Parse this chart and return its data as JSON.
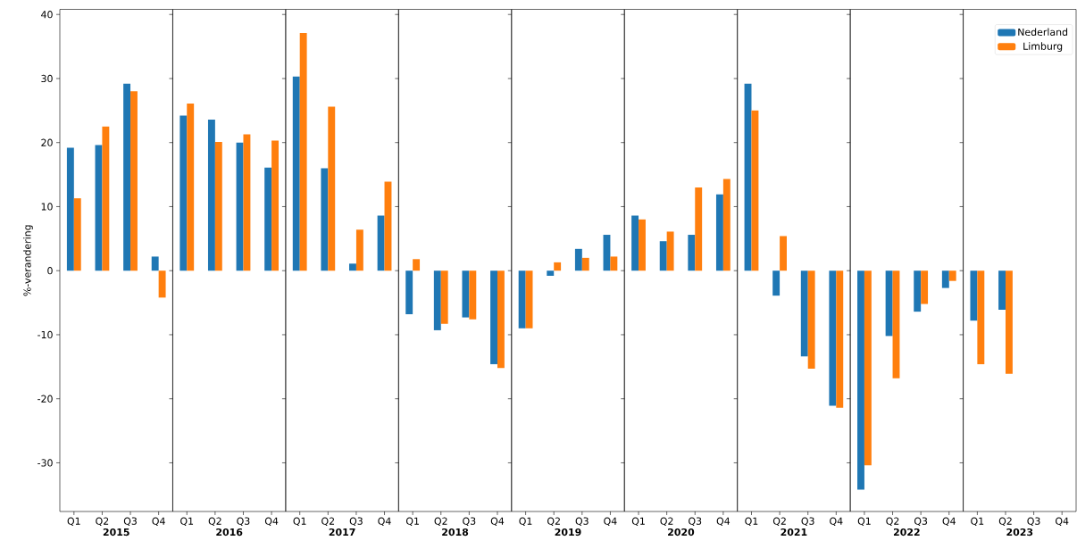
{
  "chart_data": [
    {
      "type": "bar",
      "xlabel": "2015",
      "ylabel": "%-verandering",
      "categories": [
        "Q1",
        "Q2",
        "Q3",
        "Q4"
      ],
      "ylim": [
        -37.6,
        40.8
      ],
      "yticks": [
        -30,
        -20,
        -10,
        0,
        10,
        20,
        30,
        40
      ],
      "legend": false,
      "series": [
        {
          "color": "#1f77b4",
          "values": [
            19.2,
            19.6,
            29.2,
            2.2
          ]
        },
        {
          "color": "#ff7f0e",
          "values": [
            11.3,
            22.5,
            28.0,
            -4.2
          ]
        }
      ]
    },
    {
      "type": "bar",
      "xlabel": "2016",
      "categories": [
        "Q1",
        "Q2",
        "Q3",
        "Q4"
      ],
      "ylim": [
        -37.6,
        40.8
      ],
      "yticks": [
        -30,
        -20,
        -10,
        0,
        10,
        20,
        30,
        40
      ],
      "tick_labels": "x",
      "legend": false,
      "series": [
        {
          "color": "#1f77b4",
          "values": [
            24.2,
            23.6,
            20.0,
            16.1
          ]
        },
        {
          "color": "#ff7f0e",
          "values": [
            26.1,
            20.1,
            21.3,
            20.3
          ]
        }
      ]
    },
    {
      "type": "bar",
      "xlabel": "2017",
      "categories": [
        "Q1",
        "Q2",
        "Q3",
        "Q4"
      ],
      "ylim": [
        -37.6,
        40.8
      ],
      "yticks": [
        -30,
        -20,
        -10,
        0,
        10,
        20,
        30,
        40
      ],
      "tick_labels": "x",
      "legend": false,
      "series": [
        {
          "color": "#1f77b4",
          "values": [
            30.3,
            16.0,
            1.1,
            8.6
          ]
        },
        {
          "color": "#ff7f0e",
          "values": [
            37.1,
            25.6,
            6.4,
            13.9
          ]
        }
      ]
    },
    {
      "type": "bar",
      "xlabel": "2018",
      "categories": [
        "Q1",
        "Q2",
        "Q3",
        "Q4"
      ],
      "ylim": [
        -37.6,
        40.8
      ],
      "yticks": [
        -30,
        -20,
        -10,
        0,
        10,
        20,
        30,
        40
      ],
      "tick_labels": "x",
      "legend": false,
      "series": [
        {
          "color": "#1f77b4",
          "values": [
            -6.8,
            -9.3,
            -7.3,
            -14.6
          ]
        },
        {
          "color": "#ff7f0e",
          "values": [
            1.8,
            -8.3,
            -7.6,
            -15.2
          ]
        }
      ]
    },
    {
      "type": "bar",
      "xlabel": "2019",
      "categories": [
        "Q1",
        "Q2",
        "Q3",
        "Q4"
      ],
      "ylim": [
        -37.6,
        40.8
      ],
      "yticks": [
        -30,
        -20,
        -10,
        0,
        10,
        20,
        30,
        40
      ],
      "tick_labels": "x",
      "legend": false,
      "series": [
        {
          "color": "#1f77b4",
          "values": [
            -9.0,
            -0.8,
            3.4,
            5.6
          ]
        },
        {
          "color": "#ff7f0e",
          "values": [
            -9.0,
            1.3,
            2.0,
            2.2
          ]
        }
      ]
    },
    {
      "type": "bar",
      "xlabel": "2020",
      "categories": [
        "Q1",
        "Q2",
        "Q3",
        "Q4"
      ],
      "ylim": [
        -37.6,
        40.8
      ],
      "yticks": [
        -30,
        -20,
        -10,
        0,
        10,
        20,
        30,
        40
      ],
      "tick_labels": "x",
      "legend": false,
      "series": [
        {
          "color": "#1f77b4",
          "values": [
            8.6,
            4.6,
            5.6,
            11.9
          ]
        },
        {
          "color": "#ff7f0e",
          "values": [
            8.0,
            6.1,
            13.0,
            14.3
          ]
        }
      ]
    },
    {
      "type": "bar",
      "xlabel": "2021",
      "categories": [
        "Q1",
        "Q2",
        "Q3",
        "Q4"
      ],
      "ylim": [
        -37.6,
        40.8
      ],
      "yticks": [
        -30,
        -20,
        -10,
        0,
        10,
        20,
        30,
        40
      ],
      "tick_labels": "x",
      "legend": false,
      "series": [
        {
          "color": "#1f77b4",
          "values": [
            29.2,
            -3.9,
            -13.4,
            -21.1
          ]
        },
        {
          "color": "#ff7f0e",
          "values": [
            25.0,
            5.4,
            -15.3,
            -21.4
          ]
        }
      ]
    },
    {
      "type": "bar",
      "xlabel": "2022",
      "categories": [
        "Q1",
        "Q2",
        "Q3",
        "Q4"
      ],
      "ylim": [
        -37.6,
        40.8
      ],
      "yticks": [
        -30,
        -20,
        -10,
        0,
        10,
        20,
        30,
        40
      ],
      "tick_labels": "x",
      "legend": false,
      "series": [
        {
          "color": "#1f77b4",
          "values": [
            -34.2,
            -10.2,
            -6.4,
            -2.7
          ]
        },
        {
          "color": "#ff7f0e",
          "values": [
            -30.4,
            -16.8,
            -5.2,
            -1.6
          ]
        }
      ]
    },
    {
      "type": "bar",
      "xlabel": "2023",
      "categories": [
        "Q1",
        "Q2",
        "Q3",
        "Q4"
      ],
      "ylim": [
        -37.6,
        40.8
      ],
      "yticks": [
        -30,
        -20,
        -10,
        0,
        10,
        20,
        30,
        40
      ],
      "tick_labels": "x",
      "legend": "top right",
      "series": [
        {
          "name": "Nederland",
          "color": "#1f77b4",
          "values": [
            -7.8,
            -6.1,
            null,
            null
          ]
        },
        {
          "name": "Limburg",
          "color": "#ff7f0e",
          "values": [
            -14.6,
            -16.1,
            null,
            null
          ]
        }
      ]
    }
  ]
}
